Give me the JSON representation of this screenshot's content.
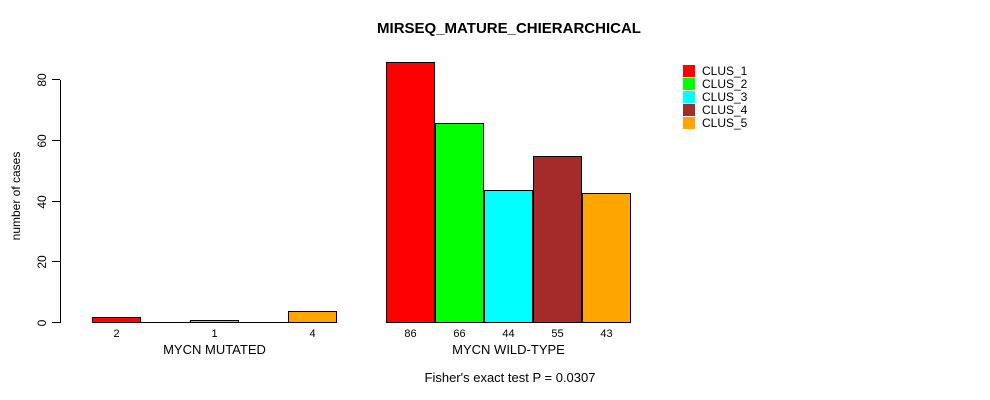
{
  "title": "MIRSEQ_MATURE_CHIERARCHICAL",
  "footer": "Fisher's exact test P = 0.0307",
  "chart_data": {
    "type": "bar",
    "title": "MIRSEQ_MATURE_CHIERARCHICAL",
    "xlabel": "",
    "ylabel": "number of cases",
    "ylim": [
      0,
      80
    ],
    "yticks": [
      "0",
      "20",
      "40",
      "60",
      "80"
    ],
    "grid": "off",
    "legend_position": "top-right",
    "annotation": "Fisher's exact test P = 0.0307",
    "series_names": [
      "CLUS_1",
      "CLUS_2",
      "CLUS_3",
      "CLUS_4",
      "CLUS_5"
    ],
    "series_colors": [
      "#FF0000",
      "#00FF00",
      "#00FFFF",
      "#A52A2A",
      "#FFA500"
    ],
    "groups": [
      {
        "label": "MYCN MUTATED",
        "values": [
          2,
          0,
          1,
          0,
          4
        ],
        "bar_labels": [
          "2",
          "",
          "1",
          "",
          "4"
        ]
      },
      {
        "label": "MYCN WILD-TYPE",
        "values": [
          86,
          66,
          44,
          55,
          43
        ],
        "bar_labels": [
          "86",
          "66",
          "44",
          "55",
          "43"
        ]
      }
    ],
    "legend": [
      {
        "label": "CLUS_1",
        "color": "#FF0000"
      },
      {
        "label": "CLUS_2",
        "color": "#00FF00"
      },
      {
        "label": "CLUS_3",
        "color": "#00FFFF"
      },
      {
        "label": "CLUS_4",
        "color": "#A52A2A"
      },
      {
        "label": "CLUS_5",
        "color": "#FFA500"
      }
    ]
  }
}
